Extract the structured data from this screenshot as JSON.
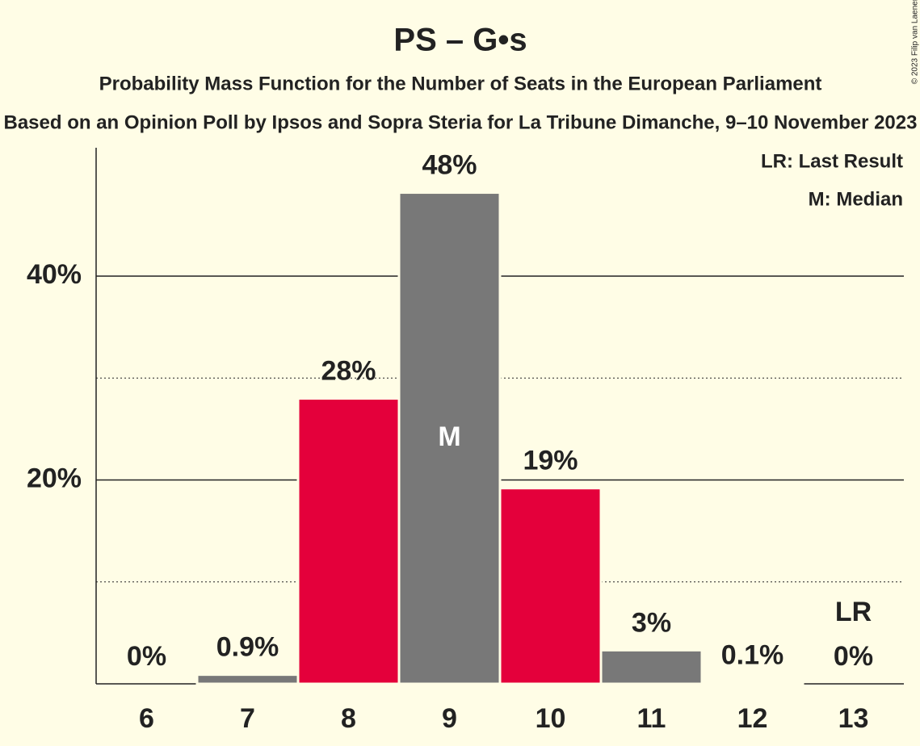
{
  "chart_data": {
    "type": "bar",
    "title": "PS – G•s",
    "subtitle": "Probability Mass Function for the Number of Seats in the European Parliament",
    "caption": "Based on an Opinion Poll by Ipsos and Sopra Steria for La Tribune Dimanche, 9–10 November 2023",
    "copyright": "© 2023 Filip van Laenen",
    "categories": [
      "6",
      "7",
      "8",
      "9",
      "10",
      "11",
      "12",
      "13"
    ],
    "values": [
      0,
      0.9,
      28,
      48.2,
      19.2,
      3.3,
      0.1,
      0
    ],
    "value_labels": [
      "0%",
      "0.9%",
      "28%",
      "48%",
      "19%",
      "3%",
      "0.1%",
      "0%"
    ],
    "colors": [
      "#787878",
      "#787878",
      "#e4003b",
      "#787878",
      "#e4003b",
      "#787878",
      "#787878",
      "#787878"
    ],
    "ylim": [
      0,
      52.6
    ],
    "yticks": [
      {
        "value": 20,
        "label": "20%"
      },
      {
        "value": 40,
        "label": "40%"
      }
    ],
    "minor_gridlines": [
      10,
      30
    ],
    "grid": true,
    "median": "9",
    "median_label": "M",
    "last_result": "13",
    "last_result_label": "LR",
    "legend": [
      "LR: Last Result",
      "M: Median"
    ]
  }
}
